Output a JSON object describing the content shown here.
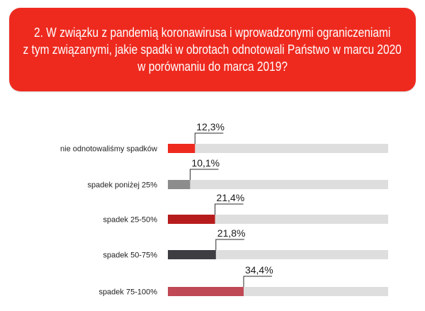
{
  "title_lines": [
    "2. W związku z pandemią koronawirusa i wprowadzonymi ograniczeniami",
    "z tym związanymi, jakie spadki w obrotach odnotowali Państwo w marcu 2020",
    "w porównaniu do marca 2019?"
  ],
  "chart_data": {
    "type": "bar",
    "orientation": "horizontal",
    "title": "2. W związku z pandemią koronawirusa i wprowadzonymi ograniczeniami z tym związanymi, jakie spadki w obrotach odnotowali Państwo w marcu 2020 w porównaniu do marca 2019?",
    "categories": [
      "nie odnotowaliśmy spadków",
      "spadek poniżej 25%",
      "spadek 25-50%",
      "spadek 50-75%",
      "spadek 75-100%"
    ],
    "values": [
      12.3,
      10.1,
      21.4,
      21.8,
      34.4
    ],
    "value_labels": [
      "12,3%",
      "10,1%",
      "21,4%",
      "21,8%",
      "34,4%"
    ],
    "xlim": [
      0,
      100
    ],
    "colors": [
      "#ee2a1f",
      "#8c8c8c",
      "#b71c1c",
      "#3d3d42",
      "#bf4a55"
    ],
    "track_color": "#dedede",
    "grid": false
  }
}
